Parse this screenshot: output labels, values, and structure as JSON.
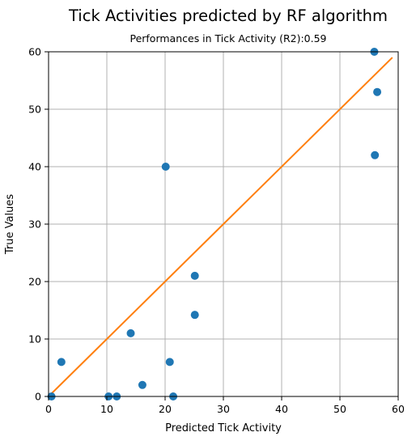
{
  "chart_data": {
    "type": "scatter",
    "title": "Tick Activities predicted by RF algorithm",
    "subtitle": "Performances in Tick Activity (R2):0.59",
    "xlabel": "Predicted Tick Activity",
    "ylabel": "True Values",
    "xlim": [
      0,
      60
    ],
    "ylim": [
      0,
      60
    ],
    "xticks": [
      0,
      10,
      20,
      30,
      40,
      50,
      60
    ],
    "yticks": [
      0,
      10,
      20,
      30,
      40,
      50,
      60
    ],
    "grid": true,
    "series": [
      {
        "kind": "points",
        "color": "#1f77b4",
        "points": [
          [
            0.5,
            0
          ],
          [
            2.2,
            6
          ],
          [
            10.3,
            0
          ],
          [
            11.7,
            0
          ],
          [
            14.1,
            11
          ],
          [
            16.1,
            2
          ],
          [
            20.1,
            40
          ],
          [
            20.8,
            6
          ],
          [
            21.4,
            0
          ],
          [
            25.1,
            21
          ],
          [
            25.1,
            14.2
          ],
          [
            55.9,
            60
          ],
          [
            56.0,
            42
          ],
          [
            56.4,
            53
          ]
        ]
      },
      {
        "kind": "line",
        "color": "#ff7f0e",
        "points": [
          [
            0,
            0
          ],
          [
            59,
            59
          ]
        ]
      }
    ]
  }
}
